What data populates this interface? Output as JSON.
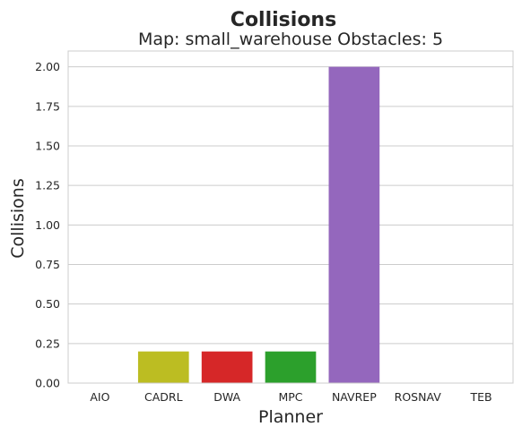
{
  "chart_data": {
    "type": "bar",
    "title": "Collisions",
    "subtitle": "Map: small_warehouse Obstacles: 5",
    "xlabel": "Planner",
    "ylabel": "Collisions",
    "categories": [
      "AIO",
      "CADRL",
      "DWA",
      "MPC",
      "NAVREP",
      "ROSNAV",
      "TEB"
    ],
    "values": [
      0,
      0.2,
      0.2,
      0.2,
      2.0,
      0,
      0
    ],
    "bar_colors": [
      "#1f77b4",
      "#bcbd22",
      "#d62728",
      "#2ca02c",
      "#9467bd",
      "#8c564b",
      "#e377c2"
    ],
    "ylim": [
      0,
      2.1
    ],
    "yticks": [
      0,
      0.25,
      0.5,
      0.75,
      1.0,
      1.25,
      1.5,
      1.75,
      2.0
    ],
    "ytick_labels": [
      "0.00",
      "0.25",
      "0.50",
      "0.75",
      "1.00",
      "1.25",
      "1.50",
      "1.75",
      "2.00"
    ],
    "grid": "horizontal",
    "legend": "none"
  }
}
